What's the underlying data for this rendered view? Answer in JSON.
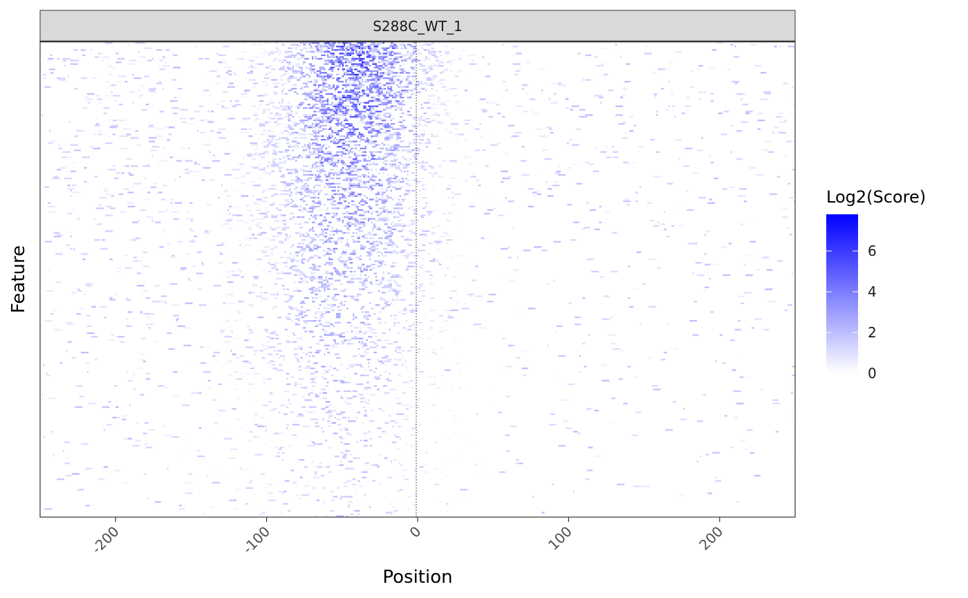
{
  "chart_data": {
    "type": "heatmap",
    "facet_label": "S288C_WT_1",
    "xlabel": "Position",
    "ylabel": "Feature",
    "xlim": [
      -250,
      250
    ],
    "x_ticks": [
      -200,
      -100,
      0,
      100,
      200
    ],
    "x_tick_labels": [
      "-200",
      "-100",
      "0",
      "100",
      "200"
    ],
    "reference_line_x": 0,
    "y_axis_tick_labels_shown": false,
    "grid": false,
    "legend": {
      "title": "Log2(Score)",
      "placement": "right",
      "scale_min": 0,
      "scale_max": 7.8,
      "ticks": [
        0,
        2,
        4,
        6
      ],
      "tick_labels": [
        "0",
        "2",
        "4",
        "6"
      ],
      "color_low": "#ffffff",
      "color_high": "#0000ff"
    },
    "rows_approx": 270,
    "density_profile_by_row_fraction": {
      "row_fraction": [
        0.0,
        0.1,
        0.2,
        0.35,
        0.5,
        0.65,
        0.8,
        1.0
      ],
      "peak_position": [
        -40,
        -42,
        -45,
        -48,
        -50,
        -52,
        -55,
        -60
      ],
      "peak_spread": [
        30,
        32,
        34,
        36,
        38,
        40,
        42,
        45
      ],
      "peak_score": [
        5.5,
        5.0,
        4.2,
        3.5,
        2.8,
        2.3,
        2.0,
        1.6
      ]
    }
  },
  "colors": {
    "strip_fill": "#d9d9d9",
    "strip_border": "#333333",
    "panel_border": "#333333",
    "axis_text": "#4d4d4d",
    "title_text": "#000000",
    "reference_line": "#000000"
  }
}
